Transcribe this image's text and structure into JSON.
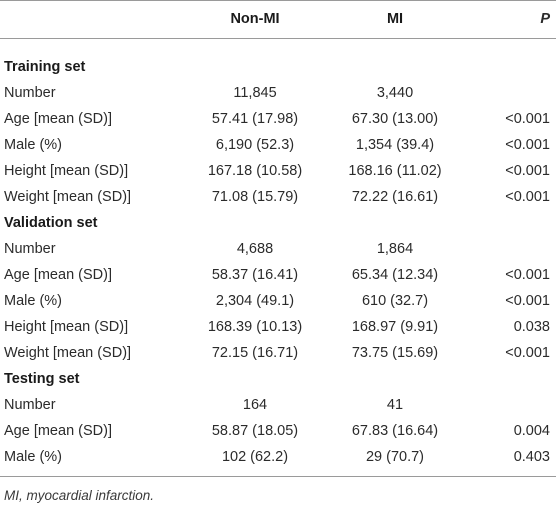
{
  "header": {
    "col1": "Non-MI",
    "col2": "MI",
    "col3": "P"
  },
  "sections": [
    {
      "title": "Training set",
      "rows": [
        {
          "label": "Number",
          "nonmi": "11,845",
          "mi": "3,440",
          "p": ""
        },
        {
          "label": "Age [mean (SD)]",
          "nonmi": "57.41 (17.98)",
          "mi": "67.30 (13.00)",
          "p": "<0.001"
        },
        {
          "label": "Male (%)",
          "nonmi": "6,190 (52.3)",
          "mi": "1,354 (39.4)",
          "p": "<0.001"
        },
        {
          "label": "Height [mean (SD)]",
          "nonmi": "167.18 (10.58)",
          "mi": "168.16 (11.02)",
          "p": "<0.001"
        },
        {
          "label": "Weight [mean (SD)]",
          "nonmi": "71.08 (15.79)",
          "mi": "72.22 (16.61)",
          "p": "<0.001"
        }
      ]
    },
    {
      "title": "Validation set",
      "rows": [
        {
          "label": "Number",
          "nonmi": "4,688",
          "mi": "1,864",
          "p": ""
        },
        {
          "label": "Age [mean (SD)]",
          "nonmi": "58.37 (16.41)",
          "mi": "65.34 (12.34)",
          "p": "<0.001"
        },
        {
          "label": "Male (%)",
          "nonmi": "2,304 (49.1)",
          "mi": "610 (32.7)",
          "p": "<0.001"
        },
        {
          "label": "Height [mean (SD)]",
          "nonmi": "168.39 (10.13)",
          "mi": "168.97 (9.91)",
          "p": "0.038"
        },
        {
          "label": "Weight [mean (SD)]",
          "nonmi": "72.15 (16.71)",
          "mi": "73.75 (15.69)",
          "p": "<0.001"
        }
      ]
    },
    {
      "title": "Testing set",
      "rows": [
        {
          "label": "Number",
          "nonmi": "164",
          "mi": "41",
          "p": ""
        },
        {
          "label": "Age [mean (SD)]",
          "nonmi": "58.87 (18.05)",
          "mi": "67.83 (16.64)",
          "p": "0.004"
        },
        {
          "label": "Male (%)",
          "nonmi": "102 (62.2)",
          "mi": "29 (70.7)",
          "p": "0.403"
        }
      ]
    }
  ],
  "footnote": "MI, myocardial infarction."
}
